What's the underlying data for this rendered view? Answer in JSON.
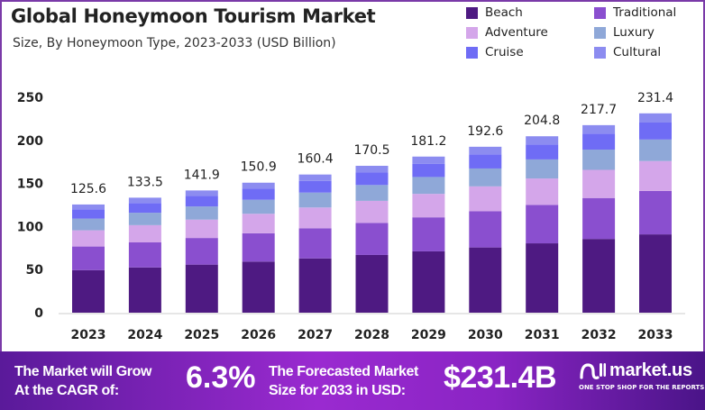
{
  "chart_data": {
    "type": "bar",
    "stacked": true,
    "title": "Global Honeymoon Tourism Market",
    "subtitle": "Size, By Honeymoon Type, 2023-2033 (USD Billion)",
    "categories": [
      "2023",
      "2024",
      "2025",
      "2026",
      "2027",
      "2028",
      "2029",
      "2030",
      "2031",
      "2032",
      "2033"
    ],
    "totals": [
      125.6,
      133.5,
      141.9,
      150.9,
      160.4,
      170.5,
      181.2,
      192.6,
      204.8,
      217.7,
      231.4
    ],
    "total_labels": [
      "125.6",
      "133.5",
      "141.9",
      "150.9",
      "160.4",
      "170.5",
      "181.2",
      "192.6",
      "204.8",
      "217.7",
      "231.4"
    ],
    "series": [
      {
        "name": "Beach",
        "color": "#4e1a82",
        "values": [
          49.4,
          52.5,
          55.8,
          59.3,
          63.0,
          67.0,
          71.2,
          75.7,
          80.5,
          85.6,
          90.9
        ]
      },
      {
        "name": "Traditional",
        "color": "#8a4fcf",
        "values": [
          27.4,
          29.1,
          30.9,
          32.9,
          35.0,
          37.2,
          39.5,
          42.0,
          44.6,
          47.5,
          50.4
        ]
      },
      {
        "name": "Adventure",
        "color": "#d4a6ea",
        "values": [
          18.8,
          20.0,
          21.3,
          22.6,
          24.1,
          25.6,
          27.2,
          28.9,
          30.7,
          32.7,
          34.7
        ]
      },
      {
        "name": "Luxury",
        "color": "#8fa8d8",
        "values": [
          13.6,
          14.4,
          15.3,
          16.3,
          17.3,
          18.4,
          19.6,
          20.8,
          22.1,
          23.5,
          25.0
        ]
      },
      {
        "name": "Cruise",
        "color": "#6f6cf5",
        "values": [
          10.7,
          11.3,
          12.1,
          12.8,
          13.6,
          14.5,
          15.4,
          16.4,
          17.4,
          18.5,
          19.7
        ]
      },
      {
        "name": "Cultural",
        "color": "#8c8cf0",
        "values": [
          5.7,
          6.2,
          6.5,
          7.0,
          7.4,
          7.8,
          8.3,
          8.8,
          9.5,
          9.9,
          10.7
        ]
      }
    ],
    "yticks": [
      "0",
      "50",
      "100",
      "150",
      "200",
      "250"
    ],
    "ylim": [
      0,
      250
    ],
    "grid": false,
    "legend_position": "top-right"
  },
  "footer": {
    "cagr_text_1": "The Market will Grow",
    "cagr_text_2": "At the CAGR of:",
    "cagr_value": "6.3%",
    "forecast_text_1": "The Forecasted Market",
    "forecast_text_2": "Size for 2033 in USD:",
    "forecast_value": "$231.4B",
    "logo_text": "market.us",
    "logo_tagline": "ONE STOP SHOP FOR THE REPORTS"
  }
}
